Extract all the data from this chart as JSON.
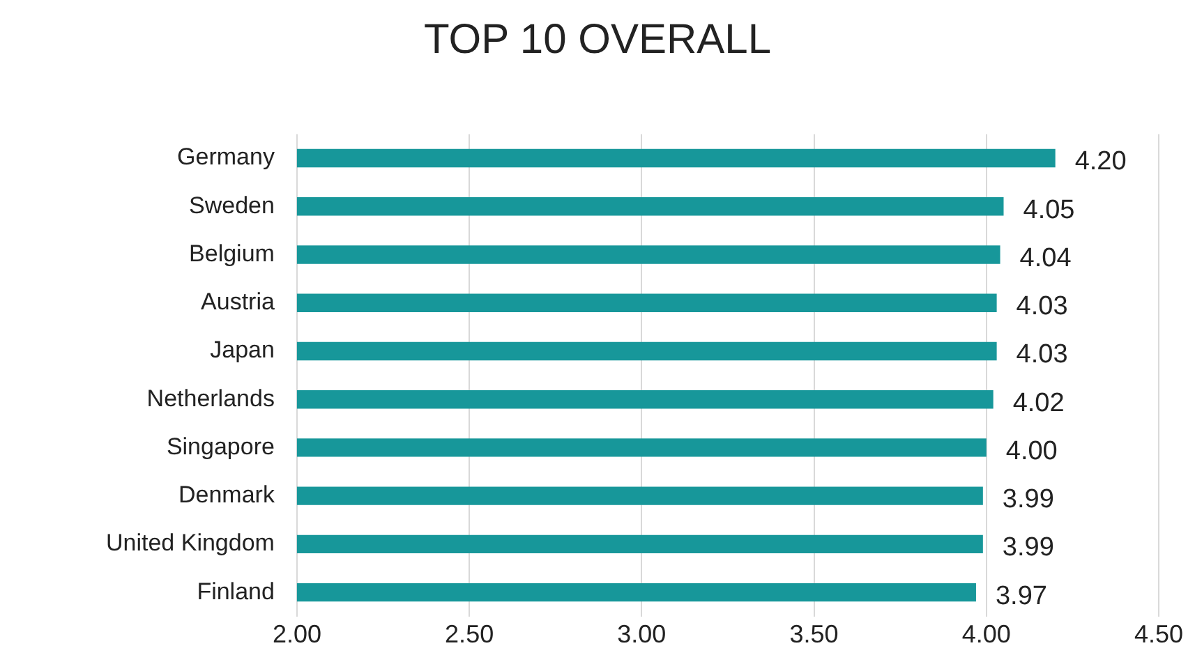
{
  "chart_data": {
    "type": "bar",
    "orientation": "horizontal",
    "title": "TOP 10 OVERALL",
    "categories": [
      "Germany",
      "Sweden",
      "Belgium",
      "Austria",
      "Japan",
      "Netherlands",
      "Singapore",
      "Denmark",
      "United Kingdom",
      "Finland"
    ],
    "values": [
      4.2,
      4.05,
      4.04,
      4.03,
      4.03,
      4.02,
      4.0,
      3.99,
      3.99,
      3.97
    ],
    "value_labels": [
      "4.20",
      "4.05",
      "4.04",
      "4.03",
      "4.03",
      "4.02",
      "4.00",
      "3.99",
      "3.99",
      "3.97"
    ],
    "color": "#17979a",
    "xlim": [
      2,
      4.5
    ],
    "xticks": [
      {
        "value": 2,
        "label": "2.00"
      },
      {
        "value": 2.5,
        "label": "2.50"
      },
      {
        "value": 3,
        "label": "3.00"
      },
      {
        "value": 3.5,
        "label": "3.50"
      },
      {
        "value": 4,
        "label": "4.00"
      },
      {
        "value": 4.5,
        "label": "4.50"
      }
    ],
    "grid": "x",
    "legend": false
  }
}
